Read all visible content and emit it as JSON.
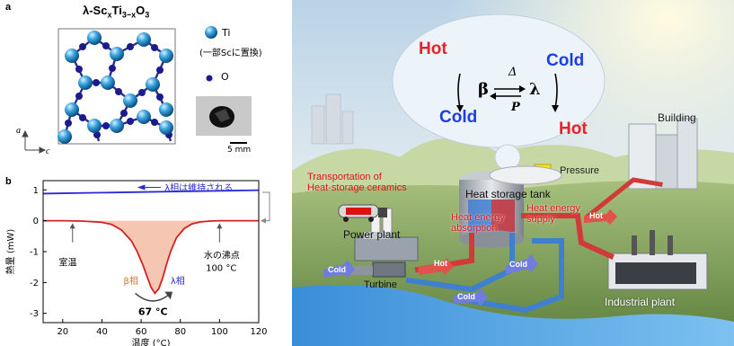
{
  "figure": {
    "panel_a": {
      "letter": "a",
      "formula_prefix": "λ-Sc",
      "formula_x": "x",
      "formula_ti": "Ti",
      "formula_3x": "3−x",
      "formula_o": "O",
      "formula_3": "3",
      "legend_ti": "Ti",
      "legend_ti_note": "(一部Scに置換)",
      "legend_o": "O",
      "axis_a": "a",
      "axis_c": "c",
      "scale_bar": "5 mm"
    },
    "panel_b": {
      "letter": "b",
      "top_annotation": "λ相は維持される",
      "label_room_temp": "室温",
      "label_boiling": "水の沸点",
      "label_boiling_temp": "100 °C",
      "label_beta": "β相",
      "label_lambda": "λ相",
      "label_peak": "67 °C"
    },
    "panel_c": {
      "cycle_hot_left": "Hot",
      "cycle_cold_left": "Cold",
      "cycle_cold_right": "Cold",
      "cycle_hot_right": "Hot",
      "cycle_beta": "β",
      "cycle_lambda": "λ",
      "cycle_delta": "Δ",
      "cycle_p": "P",
      "building": "Building",
      "pressure": "Pressure",
      "transport_line1": "Transportation of",
      "transport_line2": "Heat-storage ceramics",
      "heat_storage_tank": "Heat storage tank",
      "heat_absorption_line1": "Heat energy",
      "heat_absorption_line2": "absorption",
      "heat_supply_line1": "Heat energy",
      "heat_supply_line2": "supply",
      "power_plant": "Power plant",
      "turbine": "Turbine",
      "industrial_plant": "Industrial plant",
      "pipe_hot_1": "Hot",
      "pipe_hot_2": "Hot",
      "pipe_cold_1": "Cold",
      "pipe_cold_2": "Cold",
      "pipe_cold_3": "Cold"
    }
  },
  "chart_data": {
    "type": "line",
    "title": "",
    "xlabel": "温度 (°C)",
    "ylabel": "熱量 (mW)",
    "xlim": [
      10,
      120
    ],
    "ylim": [
      -3.3,
      1.3
    ],
    "xticks": [
      20,
      40,
      60,
      80,
      100,
      120
    ],
    "yticks": [
      1,
      0,
      -1,
      -2,
      -3
    ],
    "series": [
      {
        "color": "#2a2ad6",
        "x": [
          10,
          20,
          40,
          60,
          80,
          100,
          120
        ],
        "y": [
          0.88,
          0.89,
          0.91,
          0.93,
          0.95,
          0.97,
          0.99
        ]
      },
      {
        "color": "#d42020",
        "x": [
          10,
          20,
          30,
          40,
          45,
          50,
          55,
          58,
          61,
          63,
          65,
          67,
          69,
          71,
          73,
          75,
          78,
          82,
          86,
          90,
          95,
          100,
          110,
          120
        ],
        "y": [
          0,
          0,
          -0.01,
          -0.05,
          -0.12,
          -0.3,
          -0.65,
          -1.0,
          -1.45,
          -1.8,
          -2.15,
          -2.35,
          -2.2,
          -1.85,
          -1.4,
          -1.0,
          -0.55,
          -0.25,
          -0.1,
          -0.04,
          -0.01,
          0,
          0,
          0
        ]
      }
    ],
    "fill_under": {
      "series": 1,
      "color": "#f5c7b3"
    }
  }
}
